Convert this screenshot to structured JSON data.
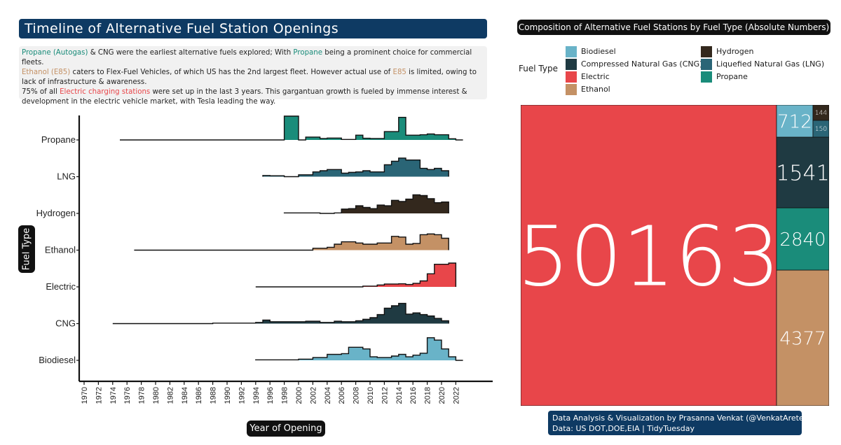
{
  "title": "Timeline  of Alternative  Fuel  Station  Openings",
  "subtitle": {
    "line1": [
      {
        "text": "Propane (Autogas)",
        "cls": "c-prop"
      },
      {
        "text": " & CNG were the earliest alternative fuels explored; With ",
        "cls": ""
      },
      {
        "text": "Propane",
        "cls": "c-prop"
      },
      {
        "text": " being a prominent choice for commercial fleets.",
        "cls": ""
      }
    ],
    "line2": [
      {
        "text": "Ethanol (E85)",
        "cls": "c-eth"
      },
      {
        "text": " caters to Flex-Fuel Vehicles, of which US has the 2nd largest fleet. However actual use of ",
        "cls": ""
      },
      {
        "text": "E85",
        "cls": "c-eth"
      },
      {
        "text": " is limited, owing to lack of infrastructure & awareness.",
        "cls": ""
      }
    ],
    "line3": [
      {
        "text": "75% of all ",
        "cls": ""
      },
      {
        "text": "Electric charging stations",
        "cls": "c-elec"
      },
      {
        "text": " were set up in the last 3 years. This gargantuan growth is fueled by immense interest & development in the electric vehicle market, with Tesla leading the way.",
        "cls": ""
      }
    ]
  },
  "colors": {
    "Biodiesel": "#69b3c8",
    "CNG": "#1f3a42",
    "Electric": "#e8464a",
    "Ethanol": "#c49165",
    "Hydrogen": "#33281d",
    "LNG": "#2a6576",
    "Propane": "#1a8c7a"
  },
  "chart_data": [
    {
      "type": "area",
      "title": "Timeline  of Alternative  Fuel  Station  Openings",
      "xlabel": "Year of Opening",
      "ylabel": "Fuel Type",
      "x_ticks": [
        "1970",
        "1972",
        "1974",
        "1976",
        "1978",
        "1980",
        "1982",
        "1984",
        "1986",
        "1988",
        "1990",
        "1992",
        "1994",
        "1996",
        "1998",
        "2000",
        "2002",
        "2004",
        "2006",
        "2008",
        "2010",
        "2012",
        "2014",
        "2016",
        "2018",
        "2020",
        "2022"
      ],
      "xlim": [
        1970,
        2022
      ],
      "grid": false,
      "series": [
        {
          "name": "Propane",
          "start": 1975,
          "end": 2023,
          "points": [
            [
              1997,
              0.0
            ],
            [
              1998,
              1.0
            ],
            [
              2000,
              0.0
            ],
            [
              2001,
              0.12
            ],
            [
              2003,
              0.06
            ],
            [
              2004,
              0.08
            ],
            [
              2006,
              0.02
            ],
            [
              2008,
              0.2
            ],
            [
              2009,
              0.07
            ],
            [
              2010,
              0.06
            ],
            [
              2012,
              0.35
            ],
            [
              2013,
              0.35
            ],
            [
              2014,
              0.95
            ],
            [
              2015,
              0.2
            ],
            [
              2017,
              0.22
            ],
            [
              2018,
              0.25
            ],
            [
              2019,
              0.22
            ],
            [
              2021,
              0.05
            ],
            [
              2022,
              0.0
            ]
          ]
        },
        {
          "name": "LNG",
          "start": 1995,
          "end": 2021,
          "points": [
            [
              1995,
              0.05
            ],
            [
              1996,
              0.04
            ],
            [
              1998,
              0.0
            ],
            [
              2000,
              0.08
            ],
            [
              2002,
              0.2
            ],
            [
              2003,
              0.25
            ],
            [
              2004,
              0.3
            ],
            [
              2006,
              0.15
            ],
            [
              2007,
              0.18
            ],
            [
              2008,
              0.2
            ],
            [
              2009,
              0.25
            ],
            [
              2010,
              0.2
            ],
            [
              2012,
              0.5
            ],
            [
              2013,
              0.65
            ],
            [
              2014,
              0.78
            ],
            [
              2015,
              0.7
            ],
            [
              2016,
              0.7
            ],
            [
              2017,
              0.35
            ],
            [
              2018,
              0.3
            ],
            [
              2019,
              0.35
            ],
            [
              2020,
              0.25
            ],
            [
              2021,
              0.2
            ]
          ]
        },
        {
          "name": "Hydrogen",
          "start": 1998,
          "end": 2021,
          "points": [
            [
              1998,
              0.02
            ],
            [
              2000,
              0.02
            ],
            [
              2003,
              0.0
            ],
            [
              2005,
              0.02
            ],
            [
              2006,
              0.18
            ],
            [
              2007,
              0.2
            ],
            [
              2008,
              0.32
            ],
            [
              2009,
              0.25
            ],
            [
              2010,
              0.2
            ],
            [
              2011,
              0.35
            ],
            [
              2012,
              0.32
            ],
            [
              2013,
              0.55
            ],
            [
              2014,
              0.5
            ],
            [
              2015,
              0.6
            ],
            [
              2016,
              0.78
            ],
            [
              2017,
              0.75
            ],
            [
              2018,
              0.62
            ],
            [
              2019,
              0.45
            ],
            [
              2020,
              0.48
            ],
            [
              2021,
              0.45
            ]
          ]
        },
        {
          "name": "Ethanol",
          "start": 1977,
          "end": 2021,
          "points": [
            [
              1994,
              0.0
            ],
            [
              2002,
              0.08
            ],
            [
              2004,
              0.12
            ],
            [
              2005,
              0.25
            ],
            [
              2006,
              0.35
            ],
            [
              2008,
              0.3
            ],
            [
              2009,
              0.25
            ],
            [
              2011,
              0.3
            ],
            [
              2013,
              0.58
            ],
            [
              2014,
              0.55
            ],
            [
              2015,
              0.25
            ],
            [
              2016,
              0.28
            ],
            [
              2017,
              0.65
            ],
            [
              2018,
              0.68
            ],
            [
              2019,
              0.65
            ],
            [
              2020,
              0.5
            ],
            [
              2021,
              0.35
            ]
          ]
        },
        {
          "name": "Electric",
          "start": 1994,
          "end": 2022,
          "points": [
            [
              1994,
              0.0
            ],
            [
              2008,
              0.0
            ],
            [
              2009,
              0.03
            ],
            [
              2010,
              0.03
            ],
            [
              2011,
              0.08
            ],
            [
              2012,
              0.12
            ],
            [
              2014,
              0.13
            ],
            [
              2015,
              0.1
            ],
            [
              2016,
              0.15
            ],
            [
              2017,
              0.25
            ],
            [
              2018,
              0.55
            ],
            [
              2019,
              0.95
            ],
            [
              2021,
              1.0
            ],
            [
              2022,
              0.0
            ]
          ]
        },
        {
          "name": "CNG",
          "start": 1974,
          "end": 2021,
          "points": [
            [
              1988,
              0.02
            ],
            [
              1994,
              0.05
            ],
            [
              1995,
              0.15
            ],
            [
              1996,
              0.08
            ],
            [
              2000,
              0.08
            ],
            [
              2001,
              0.1
            ],
            [
              2003,
              0.05
            ],
            [
              2005,
              0.1
            ],
            [
              2006,
              0.08
            ],
            [
              2008,
              0.12
            ],
            [
              2009,
              0.18
            ],
            [
              2010,
              0.25
            ],
            [
              2011,
              0.38
            ],
            [
              2012,
              0.65
            ],
            [
              2013,
              0.75
            ],
            [
              2014,
              0.85
            ],
            [
              2015,
              0.4
            ],
            [
              2016,
              0.45
            ],
            [
              2017,
              0.38
            ],
            [
              2018,
              0.32
            ],
            [
              2019,
              0.22
            ],
            [
              2020,
              0.12
            ],
            [
              2021,
              0.05
            ]
          ]
        },
        {
          "name": "Biodiesel",
          "start": 1994,
          "end": 2023,
          "points": [
            [
              1994,
              0.02
            ],
            [
              1996,
              0.02
            ],
            [
              2000,
              0.05
            ],
            [
              2002,
              0.12
            ],
            [
              2004,
              0.25
            ],
            [
              2006,
              0.28
            ],
            [
              2007,
              0.55
            ],
            [
              2008,
              0.55
            ],
            [
              2009,
              0.48
            ],
            [
              2010,
              0.15
            ],
            [
              2011,
              0.12
            ],
            [
              2013,
              0.18
            ],
            [
              2014,
              0.25
            ],
            [
              2015,
              0.15
            ],
            [
              2016,
              0.22
            ],
            [
              2017,
              0.3
            ],
            [
              2018,
              0.95
            ],
            [
              2019,
              0.85
            ],
            [
              2020,
              0.48
            ],
            [
              2021,
              0.15
            ],
            [
              2022,
              0.0
            ]
          ]
        }
      ]
    },
    {
      "type": "treemap",
      "title": "Composition of Alternative Fuel Stations by Fuel Type (Absolute Numbers)",
      "legend_title": "Fuel Type",
      "legend_position": "top",
      "items": [
        {
          "name": "Electric",
          "value": 50163
        },
        {
          "name": "Ethanol",
          "value": 4377
        },
        {
          "name": "Propane",
          "value": 2840
        },
        {
          "name": "Compressed Natural Gas (CNG)",
          "value": 1541
        },
        {
          "name": "Biodiesel",
          "value": 712
        },
        {
          "name": "Liquefied Natural Gas (LNG)",
          "value": 150
        },
        {
          "name": "Hydrogen",
          "value": 144
        }
      ]
    }
  ],
  "treemap": {
    "title": "Composition of Alternative Fuel Stations by Fuel Type (Absolute Numbers)",
    "legend_title": "Fuel Type",
    "legend": [
      {
        "label": "Biodiesel",
        "key": "Biodiesel"
      },
      {
        "label": "Compressed Natural Gas (CNG)",
        "key": "CNG"
      },
      {
        "label": "Electric",
        "key": "Electric"
      },
      {
        "label": "Ethanol",
        "key": "Ethanol"
      },
      {
        "label": "Hydrogen",
        "key": "Hydrogen"
      },
      {
        "label": "Liquefied Natural Gas (LNG)",
        "key": "LNG"
      },
      {
        "label": "Propane",
        "key": "Propane"
      }
    ]
  },
  "footer": {
    "line1": "Data Analysis & Visualization by Prasanna Venkat (@VenkatArete) |",
    "line2": "Data: US DOT,DOE,EIA | TidyTuesday"
  }
}
